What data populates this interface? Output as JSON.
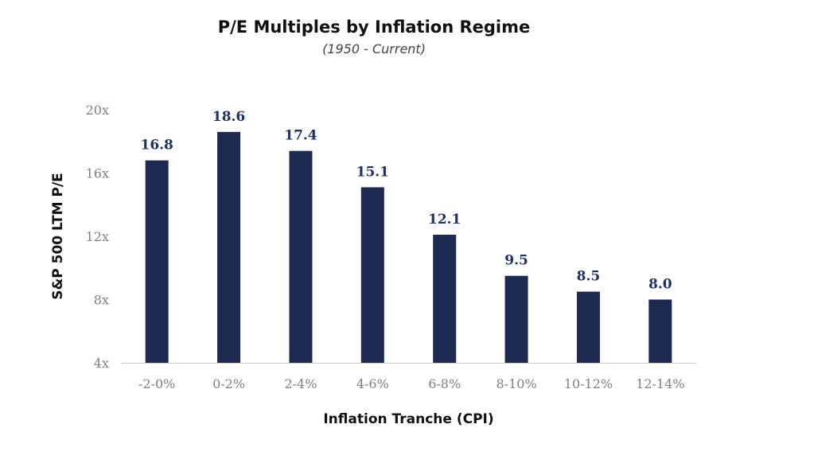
{
  "chart_data": {
    "type": "bar",
    "title": "P/E Multiples by Inflation Regime",
    "subtitle": "(1950 - Current)",
    "xlabel": "Inflation Tranche (CPI)",
    "ylabel": "S&P 500 LTM P/E",
    "categories": [
      "-2-0%",
      "0-2%",
      "2-4%",
      "4-6%",
      "6-8%",
      "8-10%",
      "10-12%",
      "12-14%"
    ],
    "values": [
      16.8,
      18.6,
      17.4,
      15.1,
      12.1,
      9.5,
      8.5,
      8.0
    ],
    "data_labels": [
      "16.8",
      "18.6",
      "17.4",
      "15.1",
      "12.1",
      "9.5",
      "8.5",
      "8.0"
    ],
    "ylim": [
      4,
      20
    ],
    "yticks": [
      4,
      8,
      12,
      16,
      20
    ],
    "ytick_labels": [
      "4x",
      "8x",
      "12x",
      "16x",
      "20x"
    ],
    "grid": false,
    "legend": "none",
    "colors": {
      "bar": "#1c2951",
      "data_label": "#1f3264",
      "tick_label": "#808080",
      "axis_line": "#c8c8c8",
      "title": "#111111"
    }
  }
}
